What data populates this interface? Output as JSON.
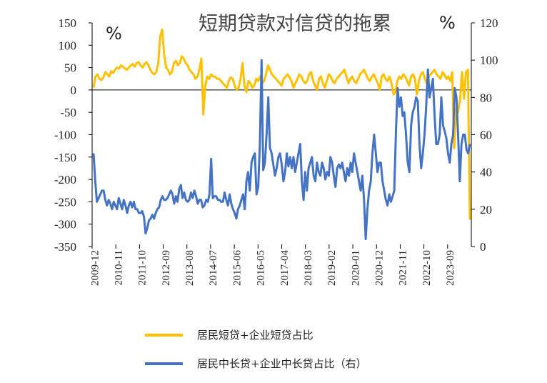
{
  "chart_data": {
    "type": "line",
    "title": "短期贷款对信贷的拖累",
    "left_unit": "%",
    "right_unit": "%",
    "x_ticks": [
      "2009-12",
      "2010-11",
      "2011-10",
      "2012-09",
      "2013-08",
      "2014-07",
      "2015-06",
      "2016-05",
      "2017-04",
      "2018-03",
      "2019-02",
      "2020-01",
      "2020-12",
      "2021-11",
      "2022-10",
      "2023-09"
    ],
    "y_left": {
      "min": -350,
      "max": 150,
      "step": 50,
      "ticks": [
        150,
        100,
        50,
        0,
        -50,
        -100,
        -150,
        -200,
        -250,
        -300,
        -350
      ]
    },
    "y_right": {
      "min": 0,
      "max": 120,
      "step": 20,
      "ticks": [
        120,
        100,
        80,
        60,
        40,
        20,
        0
      ]
    },
    "grid": false,
    "legend_position": "bottom",
    "series": [
      {
        "name": "居民短贷+企业短贷占比",
        "axis": "left",
        "color": "#FFC000",
        "values": [
          5,
          30,
          35,
          25,
          22,
          28,
          40,
          35,
          30,
          42,
          38,
          45,
          50,
          48,
          55,
          52,
          48,
          45,
          50,
          55,
          58,
          52,
          60,
          62,
          55,
          50,
          58,
          62,
          55,
          45,
          38,
          35,
          40,
          60,
          120,
          135,
          80,
          50,
          45,
          35,
          40,
          60,
          65,
          55,
          60,
          75,
          70,
          60,
          55,
          45,
          40,
          35,
          25,
          30,
          45,
          70,
          -55,
          10,
          30,
          25,
          35,
          30,
          30,
          25,
          25,
          20,
          15,
          10,
          5,
          20,
          28,
          25,
          10,
          0,
          5,
          25,
          60,
          10,
          -5,
          20,
          15,
          5,
          10,
          25,
          20,
          30,
          15,
          20,
          35,
          55,
          45,
          35,
          30,
          25,
          20,
          15,
          10,
          25,
          30,
          35,
          28,
          20,
          5,
          15,
          25,
          35,
          30,
          20,
          15,
          20,
          35,
          40,
          20,
          10,
          0,
          25,
          30,
          15,
          5,
          20,
          35,
          30,
          20,
          15,
          25,
          30,
          35,
          40,
          45,
          30,
          15,
          25,
          30,
          20,
          15,
          25,
          35,
          40,
          45,
          35,
          25,
          20,
          30,
          35,
          25,
          15,
          0,
          30,
          35,
          25,
          20,
          30,
          15,
          -10,
          -5,
          20,
          30,
          25,
          35,
          30,
          20,
          10,
          30,
          35,
          25,
          -10,
          20,
          35,
          40,
          25,
          15,
          30,
          35,
          40,
          45,
          35,
          30,
          25,
          40,
          35,
          25,
          30,
          20,
          40,
          -130,
          -40,
          -50,
          -20,
          40,
          -20,
          40,
          45,
          -290
        ]
      },
      {
        "name": "居民中长贷+企业中长贷占比（右）",
        "axis": "right",
        "color": "#4472C4",
        "values": [
          50,
          35,
          24,
          26,
          28,
          30,
          30,
          25,
          22,
          25,
          23,
          20,
          24,
          22,
          20,
          26,
          23,
          20,
          25,
          22,
          18,
          22,
          24,
          21,
          24,
          20,
          20,
          18,
          18,
          19,
          16,
          7,
          10,
          14,
          15,
          17,
          15,
          18,
          20,
          21,
          25,
          27,
          25,
          25,
          26,
          28,
          30,
          28,
          23,
          27,
          24,
          31,
          33,
          26,
          29,
          25,
          24,
          25,
          29,
          26,
          30,
          27,
          23,
          25,
          25,
          21,
          22,
          25,
          24,
          28,
          47,
          26,
          27,
          27,
          25,
          25,
          24,
          24,
          29,
          25,
          22,
          28,
          23,
          20,
          18,
          15,
          20,
          22,
          25,
          28,
          20,
          35,
          40,
          30,
          45,
          48,
          50,
          28,
          32,
          55,
          100,
          41,
          45,
          60,
          80,
          53,
          50,
          44,
          38,
          42,
          48,
          50,
          44,
          35,
          40,
          50,
          43,
          48,
          42,
          48,
          40,
          45,
          50,
          55,
          35,
          25,
          40,
          30,
          42,
          45,
          48,
          38,
          35,
          45,
          40,
          38,
          45,
          42,
          36,
          40,
          38,
          48,
          45,
          38,
          32,
          42,
          44,
          42,
          45,
          40,
          35,
          42,
          38,
          45,
          40,
          50,
          45,
          40,
          35,
          30,
          38,
          25,
          4,
          20,
          30,
          35,
          50,
          60,
          50,
          40,
          45,
          45,
          35,
          30,
          25,
          22,
          28,
          24,
          27,
          30,
          62,
          85,
          75,
          80,
          70,
          72,
          60,
          45,
          40,
          65,
          72,
          75,
          80,
          78,
          55,
          42,
          50,
          60,
          75,
          95,
          80,
          85,
          90,
          70,
          55,
          55,
          60,
          80,
          65,
          62,
          58,
          50,
          45,
          55,
          60,
          85,
          80,
          60,
          35,
          55,
          60,
          60,
          52,
          50,
          55
        ]
      }
    ]
  }
}
